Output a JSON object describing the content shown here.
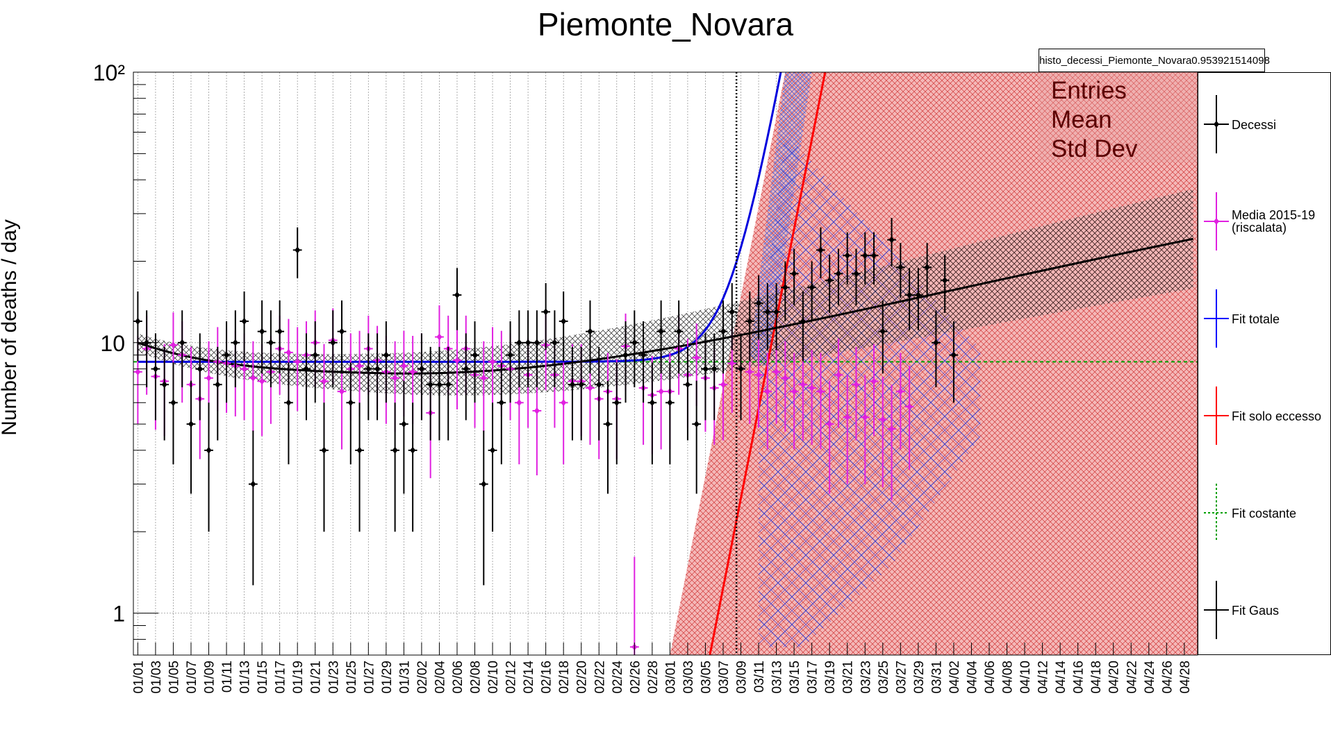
{
  "chart_data": {
    "type": "line",
    "title": "Piemonte_Novara",
    "ylabel": "Number of deaths / day",
    "yscale": "log",
    "ylim": [
      0.7,
      100
    ],
    "ytick_labels": [
      "1",
      "10",
      "10²"
    ],
    "x_tick_labels": [
      "01/01",
      "01/03",
      "01/05",
      "01/07",
      "01/09",
      "01/11",
      "01/13",
      "01/15",
      "01/17",
      "01/19",
      "01/21",
      "01/23",
      "01/25",
      "01/27",
      "01/29",
      "01/31",
      "02/02",
      "02/04",
      "02/06",
      "02/08",
      "02/10",
      "02/12",
      "02/14",
      "02/16",
      "02/18",
      "02/20",
      "02/22",
      "02/24",
      "02/26",
      "02/28",
      "03/01",
      "03/03",
      "03/05",
      "03/07",
      "03/09",
      "03/11",
      "03/13",
      "03/15",
      "03/17",
      "03/19",
      "03/21",
      "03/23",
      "03/25",
      "03/27",
      "03/29",
      "03/31",
      "04/02",
      "04/04",
      "04/06",
      "04/08",
      "04/10",
      "04/12",
      "04/14",
      "04/16",
      "04/18",
      "04/20",
      "04/22",
      "04/24",
      "04/26",
      "04/28"
    ],
    "grid": true,
    "legend_position": "right",
    "vertical_marker_date": "03/09",
    "series": [
      {
        "name": "Decessi",
        "color": "#000000",
        "marker": "diamond",
        "values": [
          12,
          10,
          8,
          7,
          6,
          10,
          5,
          8,
          4,
          7,
          9,
          10,
          12,
          3,
          11,
          10,
          11,
          6,
          22,
          8,
          9,
          4,
          10,
          11,
          6,
          4,
          8,
          8,
          9,
          4,
          5,
          4,
          8,
          7,
          7,
          7,
          15,
          8,
          9,
          3,
          4,
          6,
          9,
          10,
          10,
          10,
          13,
          10,
          12,
          7,
          7,
          11,
          7,
          5,
          6,
          9,
          10,
          9,
          6,
          11,
          6,
          11,
          7,
          5,
          8,
          8,
          11,
          13,
          8,
          12,
          14,
          13,
          13,
          16,
          18,
          12,
          16,
          22,
          17,
          18,
          21,
          18,
          21,
          21,
          11,
          24,
          19,
          15,
          15,
          19,
          10,
          17,
          9
        ]
      },
      {
        "name": "Media 2015-19\n(riscalata)",
        "color": "#e020e0",
        "marker": "diamond",
        "values": [
          7.8,
          9.5,
          7.5,
          7.2,
          9.8,
          9,
          7,
          6.2,
          7.4,
          8.5,
          8.4,
          8.2,
          8,
          7.4,
          7.2,
          7.8,
          9.5,
          9.2,
          8.5,
          9,
          10,
          7.2,
          10.2,
          6.6,
          8,
          8.2,
          9.5,
          8.6,
          7.8,
          7.4,
          8.2,
          7.8,
          8,
          5.5,
          10.5,
          9.5,
          8.6,
          9.5,
          7.6,
          7.4,
          8.5,
          8.2,
          8,
          6,
          7.6,
          5.6,
          9.8,
          7.6,
          6,
          7.2,
          7.2,
          6.8,
          6.2,
          6.6,
          6.2,
          9.7,
          0.75,
          6.8,
          6.4,
          6.6,
          6.6,
          9.5,
          7.6,
          8.8,
          7.4,
          6.8,
          7,
          8.4,
          8,
          7.8,
          7.6,
          6.6,
          7.8,
          7.4,
          6.6,
          7,
          6.8,
          6.6,
          5,
          7.6,
          5.3,
          7,
          5.3,
          7.2,
          5.2,
          4.8,
          6.6,
          5.8
        ]
      },
      {
        "name": "Fit totale",
        "color": "#0000ff",
        "marker": "line"
      },
      {
        "name": "Fit solo eccesso",
        "color": "#ff0000",
        "marker": "line"
      },
      {
        "name": "Fit costante",
        "color": "#00a000",
        "marker": "dashed",
        "value": 8.5
      },
      {
        "name": "Fit Gaus",
        "color": "#000000",
        "marker": "line"
      }
    ],
    "stats": {
      "histogram_name": "histo_decessi_Piemonte_Novara0.953921514098",
      "rows": [
        "Entries",
        "Mean",
        "Std Dev"
      ]
    }
  }
}
